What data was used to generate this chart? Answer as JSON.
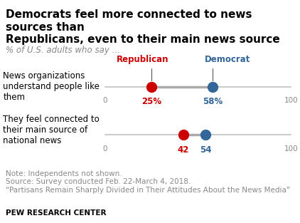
{
  "title": "Democrats feel more connected to news sources than\nRepublicans, even to their main news source",
  "subtitle": "% of U.S. adults who say ...",
  "categories": [
    "News organizations\nunderstand people like\nthem",
    "They feel connected to\ntheir main source of\nnational news"
  ],
  "republican_values": [
    25,
    42
  ],
  "democrat_values": [
    58,
    54
  ],
  "republican_labels": [
    "25%",
    "42"
  ],
  "democrat_labels": [
    "58%",
    "54"
  ],
  "republican_color": "#CC0000",
  "democrat_color": "#336699",
  "line_color": "#CCCCCC",
  "axis_min": 0,
  "axis_max": 100,
  "note_lines": [
    "Note: Independents not shown.",
    "Source: Survey conducted Feb. 22-March 4, 2018.",
    "“Partisans Remain Sharply Divided in Their Attitudes About the News Media”"
  ],
  "footer": "PEW RESEARCH CENTER",
  "title_fontsize": 11,
  "subtitle_fontsize": 8.5,
  "label_fontsize": 8.5,
  "note_fontsize": 7.5,
  "footer_fontsize": 7.5
}
